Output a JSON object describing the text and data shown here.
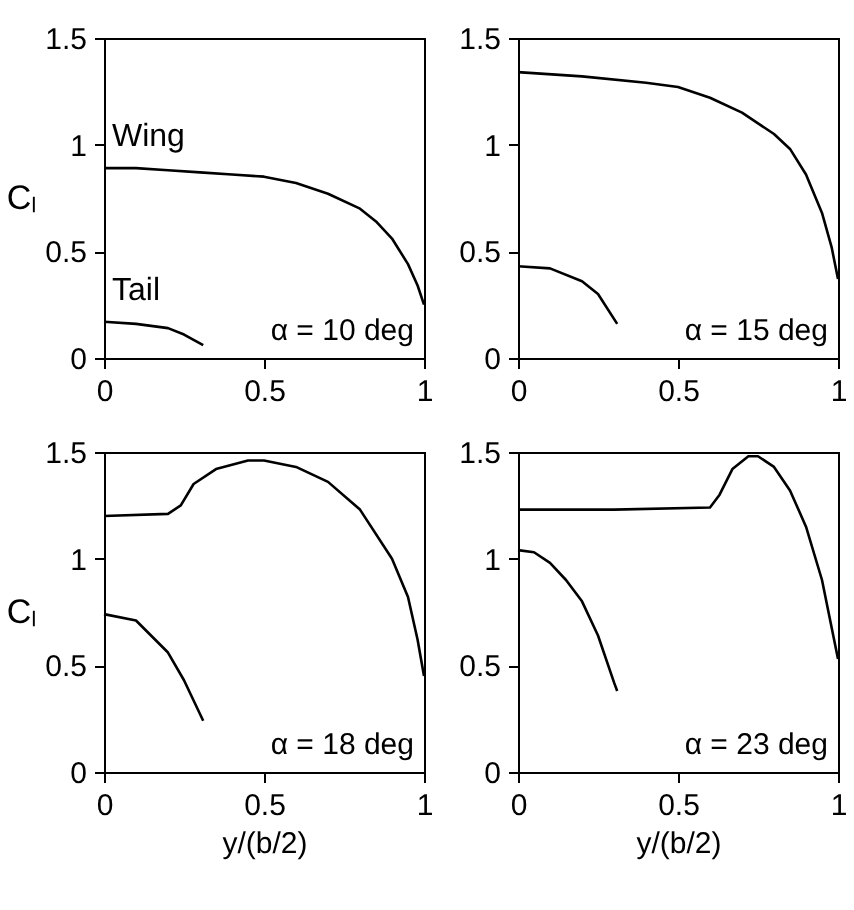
{
  "chart_data": [
    {
      "type": "line",
      "ylabel": "Cₗ",
      "xlim": [
        0,
        1
      ],
      "ylim": [
        0,
        1.5
      ],
      "xticks": [
        0,
        0.5,
        1
      ],
      "yticks": [
        0,
        0.5,
        1,
        1.5
      ],
      "line_style": "solid",
      "annotations": [
        "α = 10 deg"
      ],
      "series": [
        {
          "name": "Wing",
          "color": "#000000",
          "x": [
            0,
            0.1,
            0.2,
            0.3,
            0.4,
            0.5,
            0.6,
            0.7,
            0.8,
            0.85,
            0.9,
            0.95,
            0.98,
            1
          ],
          "values": [
            0.89,
            0.89,
            0.88,
            0.87,
            0.86,
            0.85,
            0.82,
            0.77,
            0.7,
            0.64,
            0.56,
            0.44,
            0.34,
            0.25
          ]
        },
        {
          "name": "Tail",
          "color": "#000000",
          "x": [
            0,
            0.1,
            0.2,
            0.25,
            0.31
          ],
          "values": [
            0.17,
            0.16,
            0.14,
            0.11,
            0.06
          ]
        }
      ]
    },
    {
      "type": "line",
      "xlim": [
        0,
        1
      ],
      "ylim": [
        0,
        1.5
      ],
      "xticks": [
        0,
        0.5,
        1
      ],
      "yticks": [
        0,
        0.5,
        1,
        1.5
      ],
      "line_style": "solid",
      "annotations": [
        "α = 15 deg"
      ],
      "series": [
        {
          "color": "#000000",
          "x": [
            0,
            0.2,
            0.4,
            0.5,
            0.6,
            0.7,
            0.8,
            0.85,
            0.9,
            0.95,
            0.98,
            1
          ],
          "values": [
            1.34,
            1.32,
            1.29,
            1.27,
            1.22,
            1.15,
            1.05,
            0.98,
            0.86,
            0.68,
            0.52,
            0.37
          ]
        },
        {
          "color": "#000000",
          "x": [
            0,
            0.1,
            0.2,
            0.25,
            0.31
          ],
          "values": [
            0.43,
            0.42,
            0.36,
            0.3,
            0.16
          ]
        }
      ]
    },
    {
      "type": "line",
      "xlabel": "y/(b/2)",
      "ylabel": "Cₗ",
      "xlim": [
        0,
        1
      ],
      "ylim": [
        0,
        1.5
      ],
      "xticks": [
        0,
        0.5,
        1
      ],
      "yticks": [
        0,
        0.5,
        1,
        1.5
      ],
      "line_style": "solid",
      "annotations": [
        "α = 18 deg"
      ],
      "series": [
        {
          "color": "#000000",
          "x": [
            0,
            0.2,
            0.24,
            0.28,
            0.35,
            0.45,
            0.5,
            0.6,
            0.7,
            0.8,
            0.9,
            0.95,
            0.98,
            1
          ],
          "values": [
            1.2,
            1.21,
            1.25,
            1.35,
            1.42,
            1.46,
            1.46,
            1.43,
            1.36,
            1.23,
            1.0,
            0.82,
            0.62,
            0.45
          ]
        },
        {
          "color": "#000000",
          "x": [
            0,
            0.1,
            0.2,
            0.25,
            0.31
          ],
          "values": [
            0.74,
            0.71,
            0.56,
            0.43,
            0.24
          ]
        }
      ]
    },
    {
      "type": "line",
      "xlabel": "y/(b/2)",
      "xlim": [
        0,
        1
      ],
      "ylim": [
        0,
        1.5
      ],
      "xticks": [
        0,
        0.5,
        1
      ],
      "yticks": [
        0,
        0.5,
        1,
        1.5
      ],
      "line_style": "solid",
      "annotations": [
        "α = 23 deg"
      ],
      "series": [
        {
          "color": "#000000",
          "x": [
            0,
            0.3,
            0.6,
            0.63,
            0.67,
            0.72,
            0.75,
            0.8,
            0.85,
            0.9,
            0.95,
            1
          ],
          "values": [
            1.23,
            1.23,
            1.24,
            1.3,
            1.42,
            1.48,
            1.48,
            1.43,
            1.32,
            1.15,
            0.9,
            0.53
          ]
        },
        {
          "color": "#000000",
          "x": [
            0,
            0.05,
            0.1,
            0.15,
            0.2,
            0.25,
            0.3,
            0.31
          ],
          "values": [
            1.04,
            1.03,
            0.98,
            0.9,
            0.8,
            0.64,
            0.42,
            0.38
          ]
        }
      ]
    }
  ]
}
